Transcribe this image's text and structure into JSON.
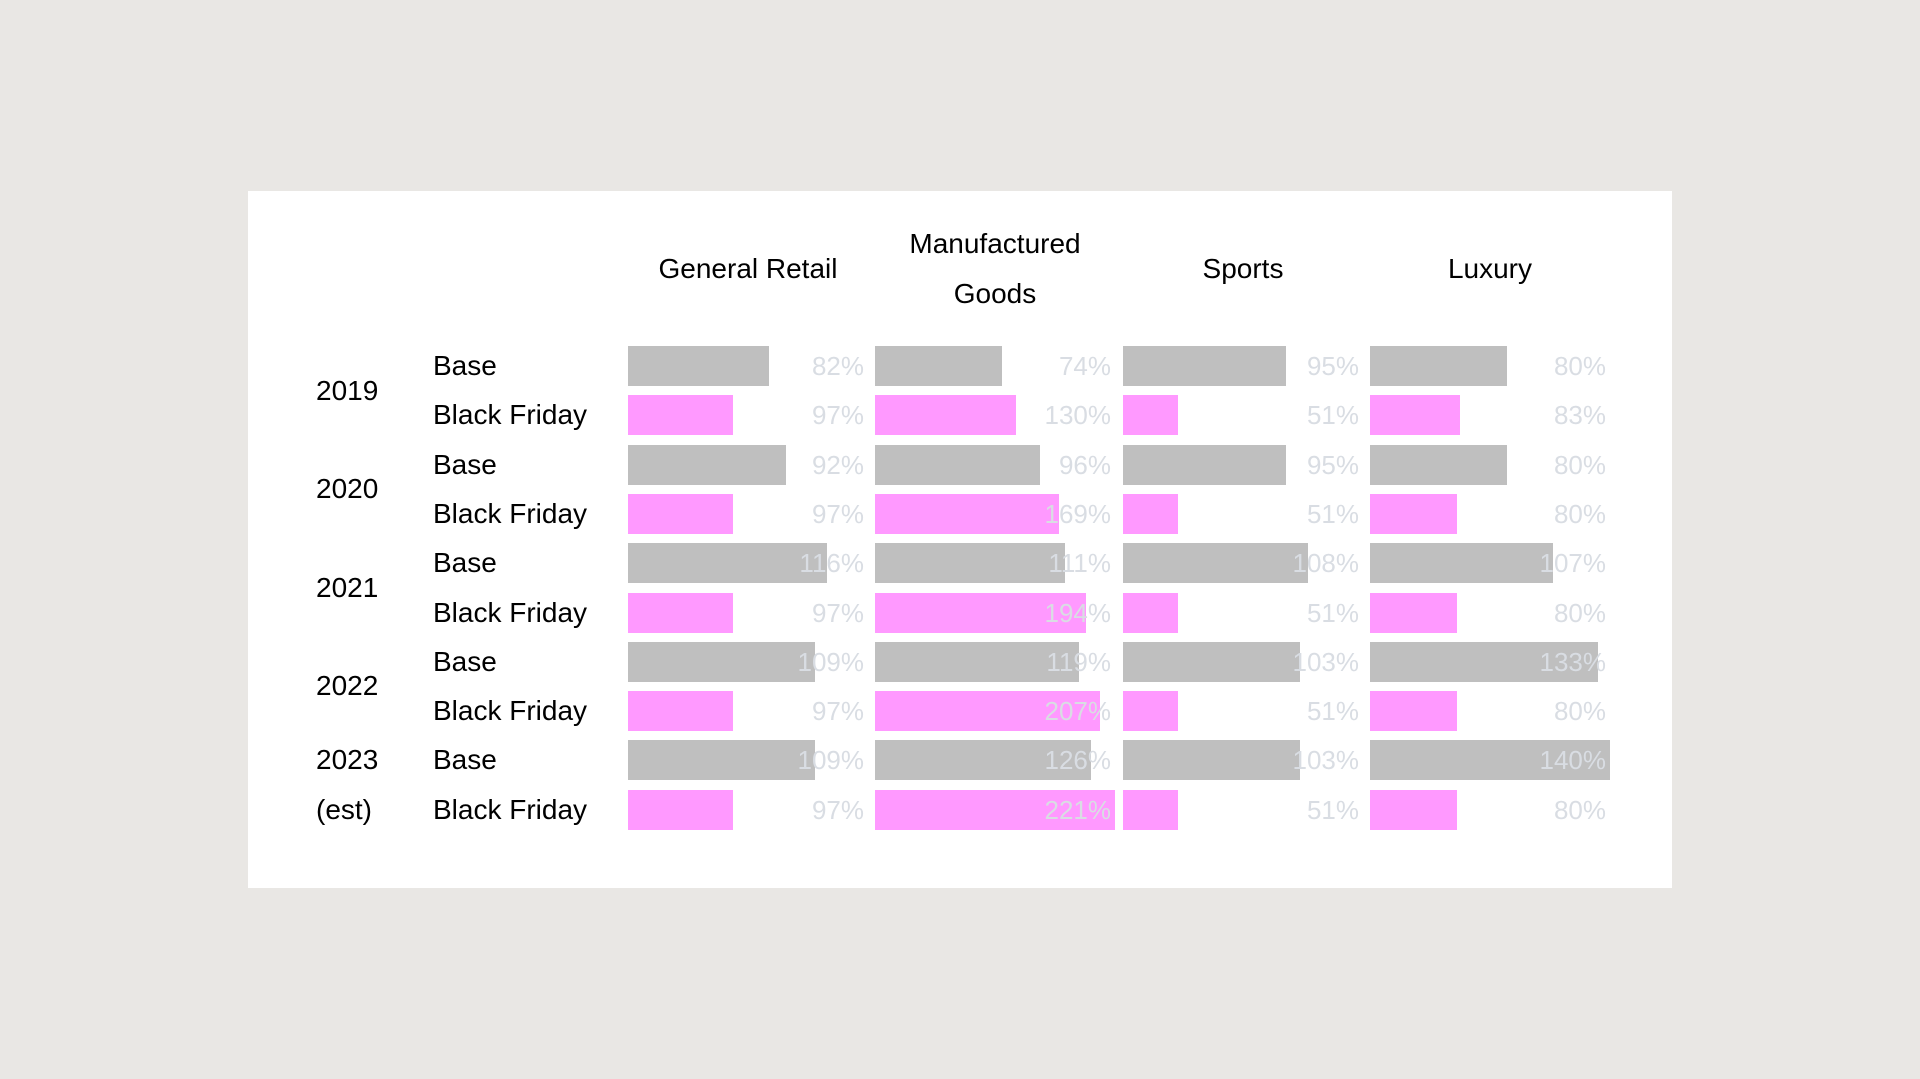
{
  "page_background": "#E9E7E4",
  "panel_background": "#FFFFFF",
  "colors": {
    "base_bar": "#BFBFBF",
    "black_friday_bar": "#FF99FF",
    "value_text": "#D9DDE3",
    "label_text": "#000000"
  },
  "chart_data": {
    "type": "bar",
    "orientation": "horizontal",
    "title": "",
    "legend": "none",
    "grid": false,
    "value_format": "percent",
    "columns": [
      "General Retail",
      "Manufactured Goods",
      "Sports",
      "Luxury"
    ],
    "series_names": [
      "Base",
      "Black Friday"
    ],
    "scaling_note": "bar length proportional to value, each series scaled to its own maximum (Base max 140, Black Friday max 221)",
    "row_groups": [
      {
        "year_lines": [
          "2019"
        ],
        "rows": [
          {
            "label": "Base",
            "series": "Base",
            "values": [
              82,
              74,
              95,
              80
            ]
          },
          {
            "label": "Black Friday",
            "series": "Black Friday",
            "values": [
              97,
              130,
              51,
              83
            ]
          }
        ]
      },
      {
        "year_lines": [
          "2020"
        ],
        "rows": [
          {
            "label": "Base",
            "series": "Base",
            "values": [
              92,
              96,
              95,
              80
            ]
          },
          {
            "label": "Black Friday",
            "series": "Black Friday",
            "values": [
              97,
              169,
              51,
              80
            ]
          }
        ]
      },
      {
        "year_lines": [
          "2021"
        ],
        "rows": [
          {
            "label": "Base",
            "series": "Base",
            "values": [
              116,
              111,
              108,
              107
            ]
          },
          {
            "label": "Black Friday",
            "series": "Black Friday",
            "values": [
              97,
              194,
              51,
              80
            ]
          }
        ]
      },
      {
        "year_lines": [
          "2022"
        ],
        "rows": [
          {
            "label": "Base",
            "series": "Base",
            "values": [
              109,
              119,
              103,
              133
            ]
          },
          {
            "label": "Black Friday",
            "series": "Black Friday",
            "values": [
              97,
              207,
              51,
              80
            ]
          }
        ]
      },
      {
        "year_lines": [
          "2023",
          "(est)"
        ],
        "rows": [
          {
            "label": "Base",
            "series": "Base",
            "values": [
              109,
              126,
              103,
              140
            ]
          },
          {
            "label": "Black Friday",
            "series": "Black Friday",
            "values": [
              97,
              221,
              51,
              80
            ]
          }
        ]
      }
    ]
  }
}
